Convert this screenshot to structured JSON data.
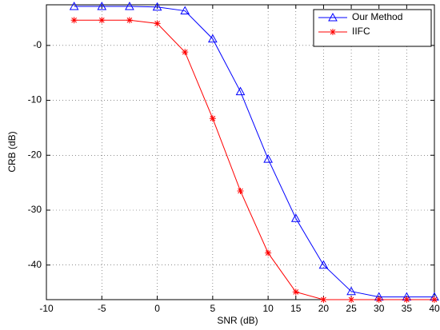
{
  "chart_data": {
    "type": "line",
    "x_label": "SNR (dB)",
    "y_label": "CRB (dB)",
    "x": [
      -7.5,
      -5,
      -2.5,
      0,
      2.5,
      5,
      7.5,
      10,
      15,
      20,
      25,
      30,
      35,
      40
    ],
    "series": [
      {
        "name": "Our Method",
        "color": "#0000ff",
        "marker": "triangle",
        "values": [
          7.1,
          7.1,
          7.1,
          7.0,
          6.3,
          1.2,
          -8.4,
          -20.7,
          -31.5,
          -40.0,
          -44.8,
          -45.8,
          -45.8,
          -45.8
        ]
      },
      {
        "name": "IIFC",
        "color": "#ff0000",
        "marker": "asterisk",
        "values": [
          4.6,
          4.6,
          4.6,
          4.0,
          -1.2,
          -13.3,
          -26.5,
          -37.8,
          -44.9,
          -46.3,
          -46.3,
          -46.3,
          -46.3,
          -46.3
        ]
      }
    ],
    "xlim": [
      -10,
      40
    ],
    "xticks": [
      -10,
      -5,
      0,
      5,
      10,
      15,
      20,
      25,
      30,
      35,
      40
    ],
    "ylim": [
      -46.3,
      7.4
    ],
    "yticks": [
      -40,
      -30,
      -20,
      -10,
      {
        "value": 0,
        "label": "-0"
      }
    ],
    "grid": true,
    "legend": "upper right"
  }
}
